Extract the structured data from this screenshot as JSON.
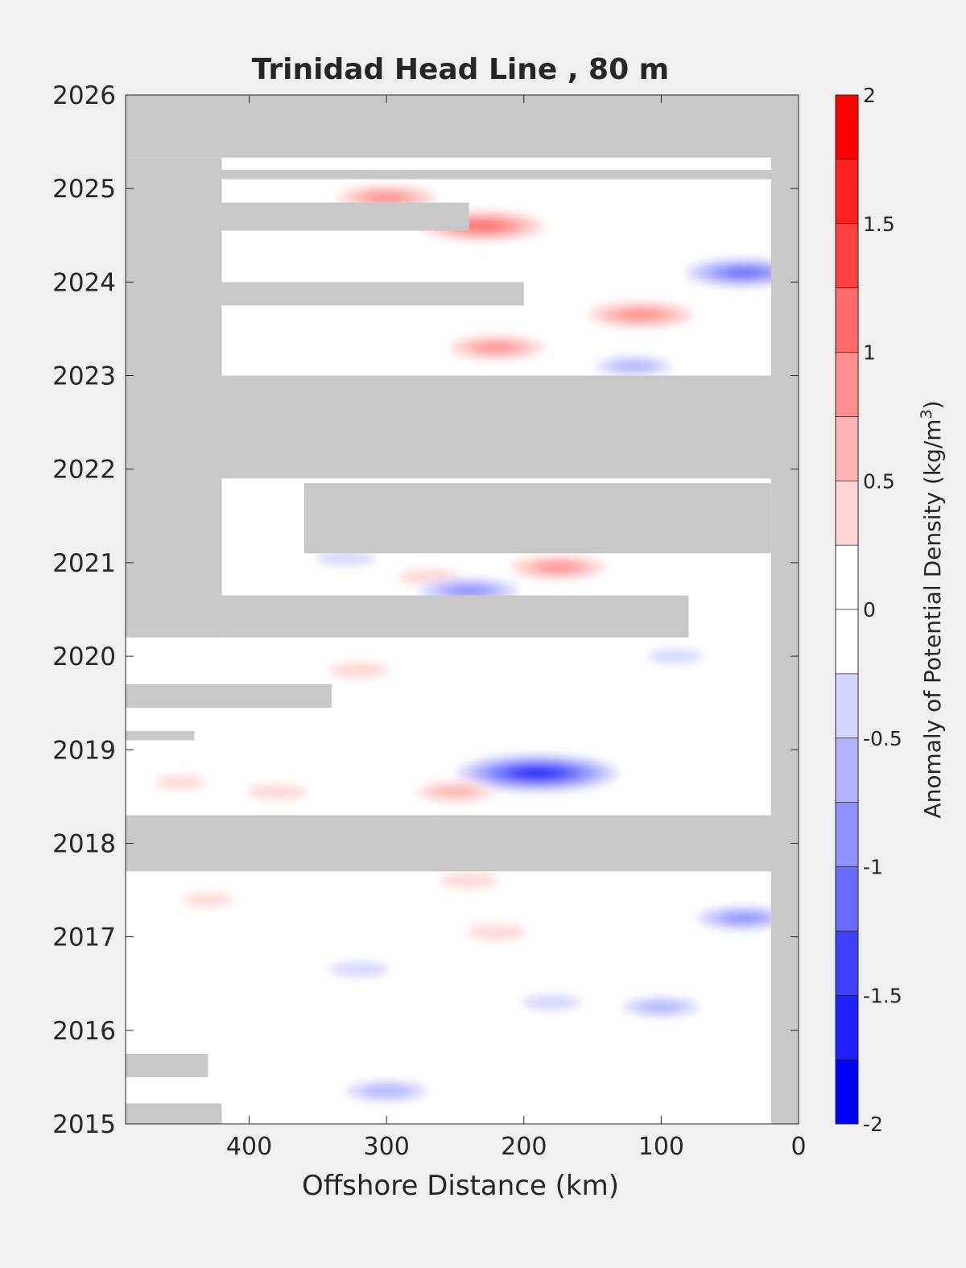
{
  "chart_data": {
    "type": "heatmap",
    "title": "Trinidad Head Line , 80 m",
    "xlabel": "Offshore Distance (km)",
    "ylabel": "",
    "colorbar_label_prefix": "Anomaly of Potential Density (kg/m",
    "colorbar_label_superscript": "3",
    "colorbar_label_suffix": ")",
    "x_ticks": [
      400,
      300,
      200,
      100,
      0
    ],
    "x_tick_labels": [
      "400",
      "300",
      "200",
      "100",
      "0"
    ],
    "xlim": [
      490,
      0
    ],
    "y_ticks": [
      2015,
      2016,
      2017,
      2018,
      2019,
      2020,
      2021,
      2022,
      2023,
      2024,
      2025,
      2026
    ],
    "y_tick_labels": [
      "2015",
      "2016",
      "2017",
      "2018",
      "2019",
      "2020",
      "2021",
      "2022",
      "2023",
      "2024",
      "2025",
      "2026"
    ],
    "ylim": [
      2015,
      2026
    ],
    "colorbar_ticks": [
      2,
      1.5,
      1,
      0.5,
      0,
      -0.5,
      -1,
      -1.5,
      -2
    ],
    "colorbar_tick_labels": [
      "2",
      "1.5",
      "1",
      "0.5",
      "0",
      "-0.5",
      "-1",
      "-1.5",
      "-2"
    ],
    "colorbar_range": [
      -2,
      2
    ],
    "colorbar_levels": [
      {
        "from": 1.75,
        "to": 2.0,
        "color": "#ff0000"
      },
      {
        "from": 1.5,
        "to": 1.75,
        "color": "#ff2020"
      },
      {
        "from": 1.25,
        "to": 1.5,
        "color": "#ff4040"
      },
      {
        "from": 1.0,
        "to": 1.25,
        "color": "#ff6a6a"
      },
      {
        "from": 0.75,
        "to": 1.0,
        "color": "#ff8f8f"
      },
      {
        "from": 0.5,
        "to": 0.75,
        "color": "#ffb3b3"
      },
      {
        "from": 0.25,
        "to": 0.5,
        "color": "#ffd6d6"
      },
      {
        "from": 0.0,
        "to": 0.25,
        "color": "#ffffff"
      },
      {
        "from": -0.25,
        "to": 0.0,
        "color": "#ffffff"
      },
      {
        "from": -0.5,
        "to": -0.25,
        "color": "#d6d6ff"
      },
      {
        "from": -0.75,
        "to": -0.5,
        "color": "#b3b3ff"
      },
      {
        "from": -1.0,
        "to": -0.75,
        "color": "#8f8fff"
      },
      {
        "from": -1.25,
        "to": -1.0,
        "color": "#6a6aff"
      },
      {
        "from": -1.5,
        "to": -1.25,
        "color": "#4040ff"
      },
      {
        "from": -1.75,
        "to": -1.5,
        "color": "#2020ff"
      },
      {
        "from": -2.0,
        "to": -1.75,
        "color": "#0000ff"
      }
    ],
    "no_data_color": "#c8c8c8",
    "no_data_regions": [
      {
        "x": [
          490,
          0
        ],
        "y": [
          2025.33,
          2026
        ]
      },
      {
        "x": [
          490,
          420
        ],
        "y": [
          2023,
          2025.33
        ]
      },
      {
        "x": [
          420,
          0
        ],
        "y": [
          2025.1,
          2025.2
        ]
      },
      {
        "x": [
          420,
          240
        ],
        "y": [
          2024.55,
          2024.85
        ]
      },
      {
        "x": [
          420,
          200
        ],
        "y": [
          2023.75,
          2024.0
        ]
      },
      {
        "x": [
          490,
          0
        ],
        "y": [
          2021.9,
          2023.0
        ]
      },
      {
        "x": [
          360,
          20
        ],
        "y": [
          2021.1,
          2021.85
        ]
      },
      {
        "x": [
          490,
          420
        ],
        "y": [
          2020.2,
          2021.9
        ]
      },
      {
        "x": [
          420,
          80
        ],
        "y": [
          2020.2,
          2020.65
        ]
      },
      {
        "x": [
          490,
          0
        ],
        "y": [
          2017.7,
          2018.3
        ]
      },
      {
        "x": [
          20,
          0
        ],
        "y": [
          2015,
          2026
        ]
      },
      {
        "x": [
          490,
          340
        ],
        "y": [
          2019.45,
          2019.7
        ]
      },
      {
        "x": [
          490,
          440
        ],
        "y": [
          2019.1,
          2019.2
        ]
      },
      {
        "x": [
          490,
          430
        ],
        "y": [
          2015.5,
          2015.75
        ]
      },
      {
        "x": [
          490,
          420
        ],
        "y": [
          2015,
          2015.22
        ]
      }
    ],
    "anomaly_blobs": [
      {
        "x": 190,
        "y": 2018.75,
        "value": -1.8
      },
      {
        "x": 230,
        "y": 2024.6,
        "value": 1.3
      },
      {
        "x": 115,
        "y": 2023.65,
        "value": 1.1
      },
      {
        "x": 40,
        "y": 2024.1,
        "value": -1.2
      },
      {
        "x": 220,
        "y": 2023.3,
        "value": 0.9
      },
      {
        "x": 300,
        "y": 2024.9,
        "value": 1.0
      },
      {
        "x": 175,
        "y": 2020.95,
        "value": 0.9
      },
      {
        "x": 330,
        "y": 2021.05,
        "value": -0.6
      },
      {
        "x": 270,
        "y": 2020.85,
        "value": 0.6
      },
      {
        "x": 240,
        "y": 2020.7,
        "value": -1.0
      },
      {
        "x": 320,
        "y": 2019.85,
        "value": 0.6
      },
      {
        "x": 300,
        "y": 2015.35,
        "value": -0.8
      },
      {
        "x": 180,
        "y": 2016.3,
        "value": -0.6
      },
      {
        "x": 40,
        "y": 2017.2,
        "value": -0.9
      },
      {
        "x": 220,
        "y": 2017.05,
        "value": 0.6
      },
      {
        "x": 380,
        "y": 2018.55,
        "value": 0.6
      },
      {
        "x": 250,
        "y": 2018.55,
        "value": 0.7
      },
      {
        "x": 450,
        "y": 2018.65,
        "value": 0.4
      },
      {
        "x": 320,
        "y": 2016.65,
        "value": -0.6
      },
      {
        "x": 100,
        "y": 2016.25,
        "value": -0.7
      },
      {
        "x": 120,
        "y": 2023.1,
        "value": -0.7
      },
      {
        "x": 240,
        "y": 2017.6,
        "value": 0.6
      },
      {
        "x": 90,
        "y": 2020.0,
        "value": -0.5
      },
      {
        "x": 430,
        "y": 2017.4,
        "value": 0.4
      }
    ]
  }
}
